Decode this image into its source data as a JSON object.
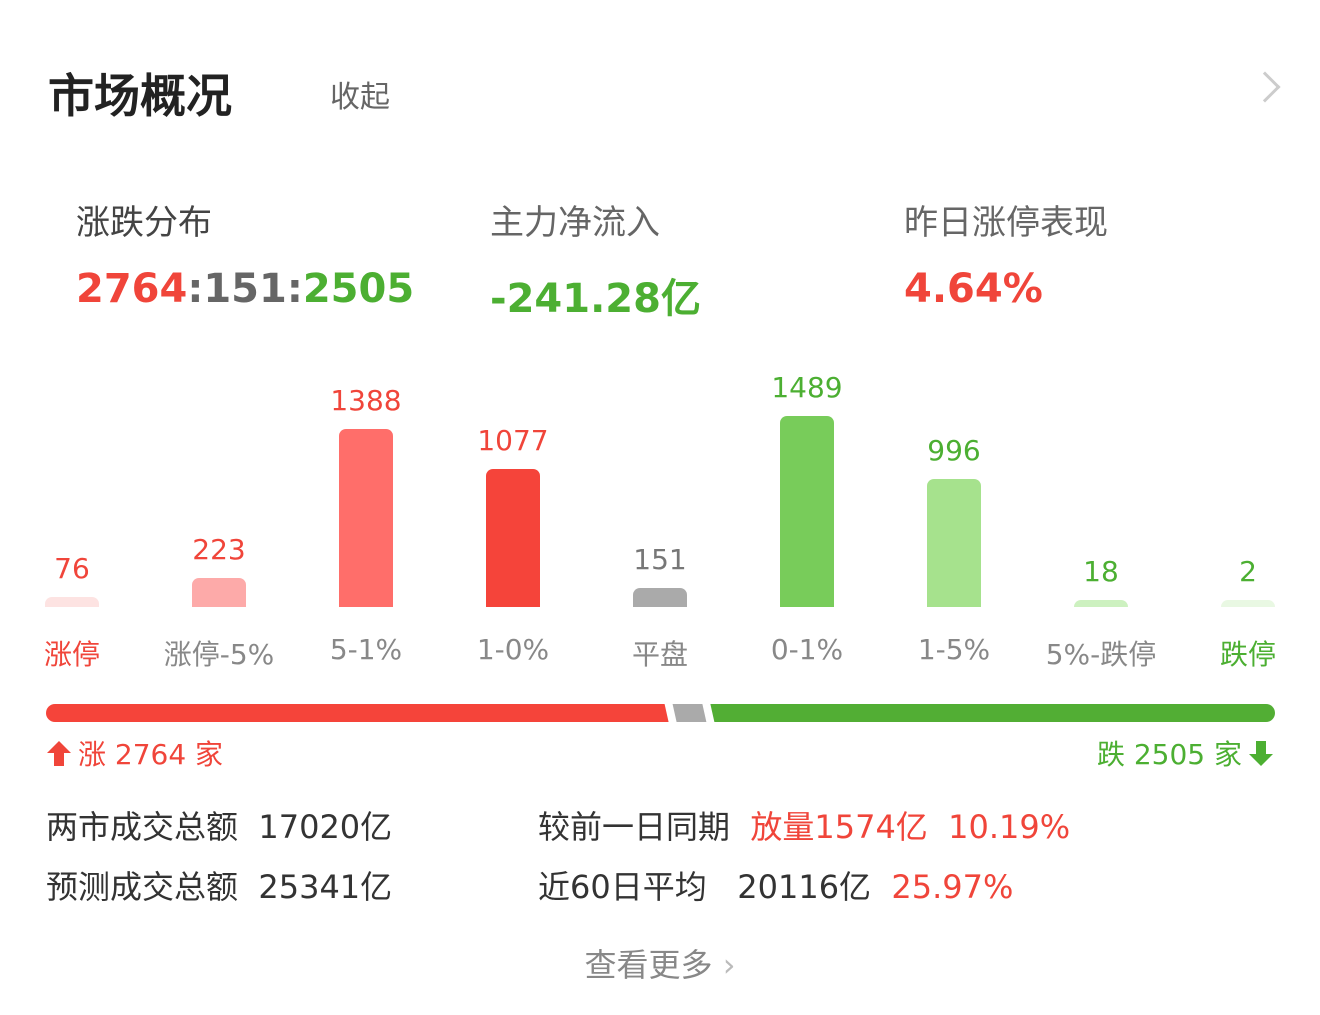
{
  "header": {
    "title": "市场概况",
    "collapse_label": "收起"
  },
  "cards": [
    {
      "label": "涨跌分布",
      "up": "2764",
      "sep1": ":",
      "flat": "151",
      "sep2": ":",
      "down": "2505"
    },
    {
      "label": "主力净流入",
      "value": "-241.28亿"
    },
    {
      "label": "昨日涨停表现",
      "value": "4.64%"
    }
  ],
  "chart_data": {
    "type": "bar",
    "categories": [
      "涨停",
      "涨停-5%",
      "5-1%",
      "1-0%",
      "平盘",
      "0-1%",
      "1-5%",
      "5%-跌停",
      "跌停"
    ],
    "values": [
      76,
      223,
      1388,
      1077,
      151,
      1489,
      996,
      18,
      2
    ],
    "colors": [
      "#fde3e2",
      "#fdaaa9",
      "#ff6e6a",
      "#f5443a",
      "#aaaaaa",
      "#78cc5a",
      "#a6e28d",
      "#cdf1c0",
      "#e9f8e3"
    ],
    "label_colors": [
      "#f0453a",
      "#f0453a",
      "#f0453a",
      "#f0453a",
      "#777777",
      "#4caf32",
      "#4caf32",
      "#4caf32",
      "#4caf32"
    ]
  },
  "ratio": {
    "up": 2764,
    "flat": 151,
    "down": 2505,
    "up_label": "涨 2764 家",
    "down_label": "跌 2505 家"
  },
  "stats": {
    "total_label": "两市成交总额",
    "total_value": "17020亿",
    "pred_label": "预测成交总额",
    "pred_value": "25341亿",
    "compare_label": "较前一日同期",
    "compare_value": "放量1574亿",
    "compare_pct": "10.19%",
    "avg_label": "近60日平均",
    "avg_value": "20116亿",
    "avg_pct": "25.97%"
  },
  "more_label": "查看更多"
}
